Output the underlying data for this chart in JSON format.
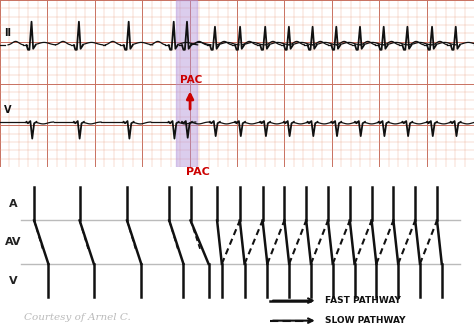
{
  "ecg_bg_color": "#f0c89a",
  "grid_minor_color": "#e8a080",
  "grid_major_color": "#c87060",
  "ecg_line_color": "#111111",
  "pac_arrow_color": "#cc0000",
  "pac_text_color": "#cc0000",
  "highlight_color": "#b090d8",
  "label_II": "II",
  "label_V": "V",
  "ladder_bg": "#ffffff",
  "ladder_line_color": "#bbbbbb",
  "ladder_stroke_color": "#111111",
  "A_label": "A",
  "AV_label": "AV",
  "V_label": "V",
  "fast_label": "FAST PATHWAY",
  "slow_label": "SLOW PATHWAY",
  "courtesy_text": "Courtesy of Arnel C.",
  "courtesy_color": "#bbbbbb"
}
